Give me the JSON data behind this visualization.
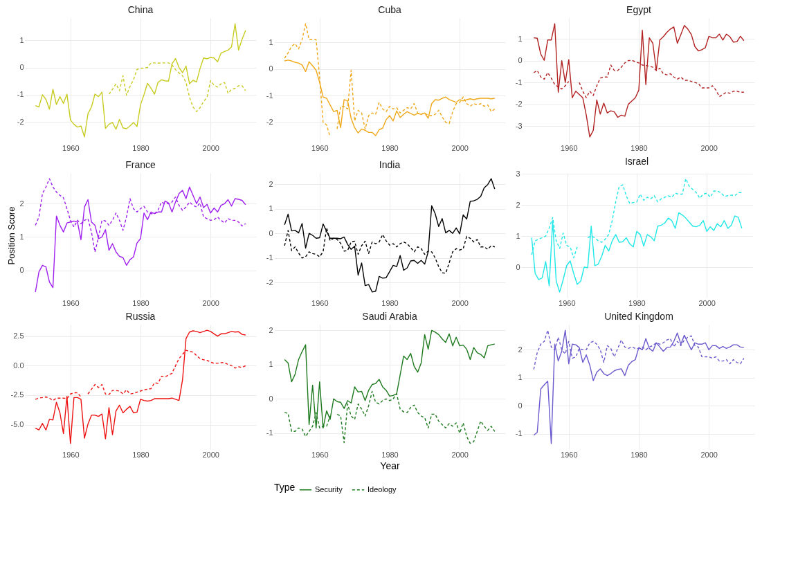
{
  "chart_data": [
    {
      "type": "line",
      "title": "China",
      "x": [
        1950,
        1951,
        1952,
        1953,
        1954,
        1955,
        1956,
        1957,
        1958,
        1959,
        1960,
        1961,
        1962,
        1963,
        1964,
        1965,
        1966,
        1967,
        1968,
        1969,
        1970,
        1971,
        1972,
        1973,
        1974,
        1975,
        1976,
        1977,
        1978,
        1979,
        1980,
        1981,
        1982,
        1983,
        1984,
        1985,
        1986,
        1987,
        1988,
        1989,
        1990,
        1991,
        1992,
        1993,
        1994,
        1995,
        1996,
        1997,
        1998,
        1999,
        2000,
        2001,
        2002,
        2003,
        2004,
        2005,
        2006,
        2007,
        2008,
        2009,
        2010
      ],
      "xlim": [
        1947,
        2013
      ],
      "xticks": [
        1960,
        1980,
        2000
      ],
      "ylim": [
        -2.76,
        1.82
      ],
      "yticks": [
        -2,
        -1,
        0,
        1
      ],
      "grid": true,
      "series": [
        {
          "color": "#c8cc20",
          "line_style": "solid",
          "values": [
            -1.4,
            -1.45,
            -1.0,
            -1.17,
            -1.53,
            -0.8,
            -1.36,
            -1.07,
            -1.32,
            -0.98,
            -1.93,
            -2.09,
            -2.19,
            -2.15,
            -2.55,
            -1.7,
            -1.45,
            -0.98,
            -1.07,
            -0.91,
            -2.24,
            -2.09,
            -2.02,
            -2.27,
            -1.91,
            -2.22,
            -2.25,
            -2.15,
            -2.02,
            -2.17,
            -1.37,
            -1.0,
            -0.58,
            -0.76,
            -0.98,
            -0.55,
            -0.45,
            -0.49,
            -0.5,
            0.14,
            0.33,
            0.0,
            -0.19,
            0.05,
            -0.6,
            -0.47,
            -0.53,
            -0.04,
            0.35,
            0.32,
            0.37,
            0.35,
            0.21,
            0.53,
            0.59,
            0.64,
            0.76,
            1.61,
            0.64,
            1.04,
            1.36
          ]
        },
        {
          "color": "#c8cc20",
          "line_style": "dashed",
          "values": [
            null,
            null,
            null,
            null,
            null,
            null,
            null,
            null,
            null,
            null,
            null,
            null,
            null,
            null,
            null,
            null,
            null,
            null,
            null,
            null,
            null,
            -0.98,
            -0.8,
            -0.6,
            -0.85,
            -0.3,
            -1.02,
            -0.7,
            -0.45,
            -0.07,
            -0.03,
            -0.02,
            0.0,
            0.17,
            0.17,
            0.16,
            0.17,
            0.17,
            0.17,
            0.1,
            -0.08,
            -0.2,
            -0.3,
            -0.55,
            -1.1,
            -1.45,
            -1.62,
            -1.48,
            -1.25,
            -1.1,
            -0.48,
            -0.65,
            -0.72,
            -0.6,
            -0.55,
            -0.95,
            -0.8,
            -0.77,
            -0.67,
            -0.67,
            -0.85
          ]
        }
      ]
    },
    {
      "type": "line",
      "title": "Cuba",
      "x": [
        1950,
        1951,
        1952,
        1953,
        1954,
        1955,
        1956,
        1957,
        1958,
        1959,
        1960,
        1961,
        1962,
        1963,
        1964,
        1965,
        1966,
        1967,
        1968,
        1969,
        1970,
        1971,
        1972,
        1973,
        1974,
        1975,
        1976,
        1977,
        1978,
        1979,
        1980,
        1981,
        1982,
        1983,
        1984,
        1985,
        1986,
        1987,
        1988,
        1989,
        1990,
        1991,
        1992,
        1993,
        1994,
        1995,
        1996,
        1997,
        1998,
        1999,
        2000,
        2001,
        2002,
        2003,
        2004,
        2005,
        2006,
        2007,
        2008,
        2009,
        2010
      ],
      "xlim": [
        1947,
        2013
      ],
      "xticks": [
        1960,
        1980,
        2000
      ],
      "ylim": [
        -2.76,
        1.91
      ],
      "yticks": [
        -2,
        -1,
        0,
        1
      ],
      "grid": true,
      "series": [
        {
          "color": "#f0a818",
          "line_style": "solid",
          "values": [
            0.3,
            0.33,
            0.3,
            0.25,
            0.22,
            0.15,
            -0.1,
            0.27,
            0.12,
            -0.05,
            -0.5,
            -1.05,
            -1.1,
            -1.35,
            -1.6,
            -1.55,
            -2.2,
            -1.15,
            -1.2,
            -1.85,
            -2.2,
            -2.4,
            -2.25,
            -2.3,
            -2.38,
            -2.38,
            -2.5,
            -2.28,
            -2.22,
            -1.9,
            -1.75,
            -1.95,
            -1.57,
            -1.82,
            -1.7,
            -1.6,
            -1.67,
            -1.73,
            -1.67,
            -1.7,
            -1.65,
            -1.85,
            -1.3,
            -1.15,
            -1.17,
            -1.1,
            -1.05,
            -1.15,
            -1.2,
            -1.25,
            -1.15,
            -1.2,
            -1.15,
            -1.12,
            -1.15,
            -1.12,
            -1.1,
            -1.1,
            -1.1,
            -1.12,
            -1.1
          ]
        },
        {
          "color": "#f0a818",
          "line_style": "dashed",
          "values": [
            0.4,
            0.6,
            0.85,
            0.95,
            0.75,
            1.1,
            1.7,
            1.1,
            1.1,
            1.1,
            -0.3,
            -2.0,
            -2.1,
            -2.55,
            null,
            -2.25,
            -1.4,
            -1.4,
            -1.5,
            -0.05,
            -1.95,
            -1.55,
            -1.65,
            -2.25,
            -1.75,
            -1.65,
            -1.7,
            -1.25,
            -1.5,
            -1.6,
            -1.4,
            -1.5,
            -1.45,
            -1.65,
            -1.55,
            -1.45,
            -1.5,
            -1.3,
            -1.65,
            -1.7,
            -1.65,
            -1.75,
            -1.75,
            -1.7,
            -1.55,
            -1.8,
            -2.0,
            -2.05,
            -1.6,
            -1.3,
            -1.25,
            -1.05,
            -1.3,
            -1.4,
            -1.3,
            -1.35,
            -1.3,
            -1.4,
            -1.35,
            -1.6,
            -1.5
          ]
        }
      ]
    },
    {
      "type": "line",
      "title": "Egypt",
      "x": [
        1950,
        1951,
        1952,
        1953,
        1954,
        1955,
        1956,
        1957,
        1958,
        1959,
        1960,
        1961,
        1962,
        1963,
        1964,
        1965,
        1966,
        1967,
        1968,
        1969,
        1970,
        1971,
        1972,
        1973,
        1974,
        1975,
        1976,
        1977,
        1978,
        1979,
        1980,
        1981,
        1982,
        1983,
        1984,
        1985,
        1986,
        1987,
        1988,
        1989,
        1990,
        1991,
        1992,
        1993,
        1994,
        1995,
        1996,
        1997,
        1998,
        1999,
        2000,
        2001,
        2002,
        2003,
        2004,
        2005,
        2006,
        2007,
        2008,
        2009,
        2010
      ],
      "xlim": [
        1947,
        2013
      ],
      "xticks": [
        1960,
        1980,
        2000
      ],
      "ylim": [
        -3.76,
        1.96
      ],
      "yticks": [
        -3,
        -2,
        -1,
        0,
        1
      ],
      "grid": true,
      "series": [
        {
          "color": "#b22222",
          "line_style": "solid",
          "values": [
            1.05,
            1.03,
            0.3,
            0.02,
            0.95,
            0.95,
            1.7,
            -1.45,
            0.0,
            -1.0,
            0.05,
            -1.7,
            -1.4,
            -1.55,
            -1.7,
            -2.5,
            -3.5,
            -3.2,
            -1.8,
            -2.45,
            -1.95,
            -2.4,
            -2.3,
            -2.35,
            -2.6,
            -2.5,
            -2.55,
            -2.0,
            -1.85,
            -1.7,
            -1.35,
            1.4,
            -1.1,
            1.05,
            0.8,
            -0.45,
            0.95,
            1.1,
            1.3,
            1.45,
            1.55,
            0.8,
            1.2,
            1.62,
            1.45,
            1.2,
            0.65,
            0.45,
            0.5,
            0.6,
            1.12,
            1.05,
            1.05,
            1.22,
            0.95,
            1.22,
            1.1,
            0.85,
            0.87,
            1.12,
            0.92
          ]
        },
        {
          "color": "#b22222",
          "line_style": "dashed",
          "values": [
            -0.55,
            -0.45,
            -0.75,
            -0.85,
            -0.55,
            -0.8,
            -1.1,
            -1.2,
            -1.3,
            -1.15,
            -0.95,
            null,
            null,
            -1.0,
            -1.4,
            -1.7,
            -1.4,
            -1.6,
            -1.15,
            -0.8,
            -0.75,
            -0.75,
            -0.2,
            -0.45,
            -0.45,
            -0.3,
            -0.1,
            0.0,
            0.02,
            -0.05,
            -0.1,
            -0.2,
            -0.22,
            -0.25,
            -0.3,
            -0.45,
            -0.35,
            -0.6,
            -0.65,
            -0.6,
            -0.75,
            -0.85,
            -0.75,
            -0.9,
            -0.9,
            -0.95,
            -1.0,
            -1.05,
            -1.25,
            -1.25,
            -1.25,
            -1.15,
            -1.35,
            -1.65,
            -1.55,
            -1.45,
            -1.5,
            -1.4,
            -1.4,
            -1.45,
            -1.45
          ]
        }
      ]
    },
    {
      "type": "line",
      "title": "France",
      "ylabel": "Position Score",
      "x": [
        1950,
        1951,
        1952,
        1953,
        1954,
        1955,
        1956,
        1957,
        1958,
        1959,
        1960,
        1961,
        1962,
        1963,
        1964,
        1965,
        1966,
        1967,
        1968,
        1969,
        1970,
        1971,
        1972,
        1973,
        1974,
        1975,
        1976,
        1977,
        1978,
        1979,
        1980,
        1981,
        1982,
        1983,
        1984,
        1985,
        1986,
        1987,
        1988,
        1989,
        1990,
        1991,
        1992,
        1993,
        1994,
        1995,
        1996,
        1997,
        1998,
        1999,
        2000,
        2001,
        2002,
        2003,
        2004,
        2005,
        2006,
        2007,
        2008,
        2009,
        2010
      ],
      "xlim": [
        1947,
        2013
      ],
      "xticks": [
        1960,
        1980,
        2000
      ],
      "ylim": [
        -0.82,
        2.92
      ],
      "yticks": [
        0,
        1,
        2
      ],
      "grid": true,
      "series": [
        {
          "color": "#a020f0",
          "line_style": "solid",
          "values": [
            -0.65,
            -0.05,
            0.15,
            0.1,
            -0.35,
            -0.52,
            1.63,
            1.35,
            1.15,
            1.42,
            1.45,
            1.48,
            1.45,
            0.92,
            1.9,
            2.12,
            1.45,
            1.35,
            0.95,
            1.0,
            1.22,
            0.6,
            0.8,
            0.55,
            0.42,
            0.38,
            0.15,
            0.32,
            0.4,
            0.82,
            0.95,
            1.72,
            1.52,
            1.75,
            1.7,
            1.75,
            1.75,
            2.08,
            2.02,
            1.75,
            2.05,
            2.3,
            2.4,
            2.15,
            2.5,
            2.25,
            2.0,
            2.2,
            1.88,
            1.98,
            1.72,
            1.87,
            1.75,
            1.95,
            2.0,
            2.12,
            1.93,
            2.15,
            2.13,
            2.1,
            1.97
          ]
        },
        {
          "color": "#a020f0",
          "line_style": "dashed",
          "values": [
            1.35,
            1.6,
            2.3,
            2.5,
            2.75,
            2.5,
            2.35,
            2.25,
            2.18,
            1.85,
            1.5,
            1.3,
            1.5,
            1.4,
            1.5,
            1.55,
            1.15,
            0.55,
            1.0,
            1.5,
            1.48,
            1.35,
            1.5,
            1.72,
            1.5,
            1.2,
            1.6,
            2.15,
            1.85,
            1.75,
            1.85,
            1.92,
            1.75,
            1.7,
            1.7,
            1.8,
            2.05,
            2.0,
            2.0,
            2.05,
            2.2,
            1.95,
            1.8,
            1.9,
            2.05,
            1.95,
            1.9,
            2.02,
            1.6,
            1.55,
            1.5,
            1.52,
            1.6,
            1.5,
            1.42,
            1.55,
            1.5,
            1.5,
            1.45,
            1.33,
            1.4
          ]
        }
      ]
    },
    {
      "type": "line",
      "title": "India",
      "x": [
        1950,
        1951,
        1952,
        1953,
        1954,
        1955,
        1956,
        1957,
        1958,
        1959,
        1960,
        1961,
        1962,
        1963,
        1964,
        1965,
        1966,
        1967,
        1968,
        1969,
        1970,
        1971,
        1972,
        1973,
        1974,
        1975,
        1976,
        1977,
        1978,
        1979,
        1980,
        1981,
        1982,
        1983,
        1984,
        1985,
        1986,
        1987,
        1988,
        1989,
        1990,
        1991,
        1992,
        1993,
        1994,
        1995,
        1996,
        1997,
        1998,
        1999,
        2000,
        2001,
        2002,
        2003,
        2004,
        2005,
        2006,
        2007,
        2008,
        2009,
        2010
      ],
      "xlim": [
        1947,
        2013
      ],
      "xticks": [
        1960,
        1980,
        2000
      ],
      "ylim": [
        -2.61,
        2.45
      ],
      "yticks": [
        -2,
        -1,
        0,
        1,
        2
      ],
      "grid": true,
      "series": [
        {
          "color": "#000000",
          "line_style": "solid",
          "values": [
            0.35,
            0.78,
            0.1,
            0.12,
            0.02,
            0.4,
            -0.6,
            0.0,
            -0.08,
            -0.2,
            -0.18,
            0.38,
            0.08,
            -0.2,
            -0.2,
            -0.2,
            -0.22,
            -0.15,
            -0.45,
            -0.65,
            -0.52,
            -1.7,
            -1.2,
            -2.12,
            -2.08,
            -2.38,
            -2.35,
            -1.75,
            -1.82,
            -1.8,
            -1.55,
            -1.3,
            -1.35,
            -0.9,
            -1.5,
            -1.4,
            -1.12,
            -1.1,
            -1.22,
            -1.1,
            -1.25,
            -0.75,
            1.12,
            0.8,
            0.28,
            0.6,
            0.02,
            0.12,
            0.0,
            0.22,
            -0.02,
            0.75,
            0.58,
            1.3,
            1.32,
            1.38,
            1.5,
            1.85,
            1.98,
            2.22,
            1.8
          ]
        },
        {
          "color": "#000000",
          "line_style": "dashed",
          "values": [
            -0.5,
            0.12,
            -0.7,
            -0.55,
            -0.8,
            -1.0,
            -0.95,
            -0.75,
            -0.82,
            -0.85,
            -0.95,
            -0.75,
            0.22,
            -0.3,
            -0.2,
            -0.25,
            -0.4,
            -0.72,
            -0.7,
            -0.35,
            -0.32,
            -0.85,
            -0.5,
            -0.32,
            -0.82,
            -0.35,
            -0.42,
            -0.35,
            -0.05,
            -0.3,
            -0.48,
            -0.42,
            -0.55,
            -0.42,
            -0.35,
            -0.42,
            -0.58,
            -0.75,
            -0.55,
            -0.62,
            -0.85,
            -0.72,
            -0.75,
            -1.0,
            -1.35,
            -1.6,
            -1.62,
            -1.2,
            -0.75,
            -0.62,
            -0.68,
            -0.62,
            -0.12,
            -0.2,
            -0.35,
            -0.25,
            -0.55,
            -0.55,
            -0.65,
            -0.5,
            -0.55
          ]
        }
      ]
    },
    {
      "type": "line",
      "title": "Israel",
      "x": [
        1950,
        1951,
        1952,
        1953,
        1954,
        1955,
        1956,
        1957,
        1958,
        1959,
        1960,
        1961,
        1962,
        1963,
        1964,
        1965,
        1966,
        1967,
        1968,
        1969,
        1970,
        1971,
        1972,
        1973,
        1974,
        1975,
        1976,
        1977,
        1978,
        1979,
        1980,
        1981,
        1982,
        1983,
        1984,
        1985,
        1986,
        1987,
        1988,
        1989,
        1990,
        1991,
        1992,
        1993,
        1994,
        1995,
        1996,
        1997,
        1998,
        1999,
        2000,
        2001,
        2002,
        2003,
        2004,
        2005,
        2006,
        2007,
        2008,
        2009,
        2010
      ],
      "xlim": [
        1947,
        2013
      ],
      "xticks": [
        1960,
        1980,
        2000
      ],
      "ylim": [
        -0.98,
        3.03
      ],
      "yticks": [
        0,
        1,
        2,
        3
      ],
      "grid": true,
      "series": [
        {
          "color": "#20e8e8",
          "line_style": "solid",
          "values": [
            0.95,
            -0.2,
            -0.4,
            -0.35,
            0.18,
            -0.6,
            1.5,
            -0.45,
            -0.8,
            -0.4,
            0.05,
            0.2,
            -0.2,
            -0.55,
            -0.45,
            0.0,
            -0.02,
            1.32,
            0.05,
            0.1,
            0.35,
            0.7,
            0.52,
            0.85,
            1.05,
            0.8,
            0.82,
            0.95,
            0.75,
            0.65,
            1.15,
            1.05,
            0.68,
            1.05,
            0.98,
            0.85,
            1.32,
            1.35,
            1.42,
            1.58,
            1.5,
            1.25,
            1.75,
            1.68,
            1.58,
            1.45,
            1.32,
            1.3,
            1.35,
            1.5,
            1.15,
            1.3,
            1.18,
            1.4,
            1.3,
            1.5,
            1.25,
            1.35,
            1.65,
            1.6,
            1.25
          ]
        },
        {
          "color": "#20e8e8",
          "line_style": "dashed",
          "values": [
            0.4,
            0.85,
            0.9,
            0.95,
            1.0,
            1.25,
            1.6,
            0.85,
            0.6,
            1.1,
            0.7,
            0.65,
            0.3,
            0.65,
            null,
            null,
            0.95,
            1.0,
            0.95,
            0.85,
            0.8,
            0.9,
            1.05,
            1.5,
            2.1,
            2.6,
            2.65,
            2.3,
            2.05,
            2.08,
            2.1,
            2.35,
            2.15,
            2.25,
            2.2,
            2.3,
            2.1,
            2.2,
            2.25,
            2.3,
            2.25,
            2.38,
            2.35,
            2.35,
            2.85,
            2.6,
            2.5,
            2.4,
            2.22,
            2.35,
            2.38,
            2.25,
            2.45,
            2.45,
            2.4,
            2.28,
            2.3,
            2.32,
            2.3,
            2.4,
            2.4
          ]
        }
      ]
    },
    {
      "type": "line",
      "title": "Russia",
      "x": [
        1950,
        1951,
        1952,
        1953,
        1954,
        1955,
        1956,
        1957,
        1958,
        1959,
        1960,
        1961,
        1962,
        1963,
        1964,
        1965,
        1966,
        1967,
        1968,
        1969,
        1970,
        1971,
        1972,
        1973,
        1974,
        1975,
        1976,
        1977,
        1978,
        1979,
        1980,
        1981,
        1982,
        1983,
        1984,
        1985,
        1986,
        1987,
        1988,
        1989,
        1990,
        1991,
        1992,
        1993,
        1994,
        1995,
        1996,
        1997,
        1998,
        1999,
        2000,
        2001,
        2002,
        2003,
        2004,
        2005,
        2006,
        2007,
        2008,
        2009,
        2010
      ],
      "xlim": [
        1947,
        2013
      ],
      "xticks": [
        1960,
        1980,
        2000
      ],
      "ylim": [
        -7.08,
        3.48
      ],
      "yticks": [
        {
          "value": -5,
          "label": "-5.0"
        },
        {
          "value": -2.5,
          "label": "-2.5"
        },
        {
          "value": 0,
          "label": "0.0"
        },
        {
          "value": 2.5,
          "label": "2.5"
        }
      ],
      "grid": true,
      "series": [
        {
          "color": "#ee1111",
          "line_style": "solid",
          "values": [
            -5.3,
            -5.45,
            -4.9,
            -5.45,
            -4.55,
            -4.6,
            -3.1,
            -4.0,
            -5.75,
            -2.6,
            -6.6,
            -2.7,
            -2.7,
            -2.85,
            -6.15,
            -4.95,
            -4.2,
            -4.2,
            -4.3,
            -4.1,
            -6.2,
            -3.55,
            -5.85,
            -3.85,
            -3.35,
            -4.0,
            -3.7,
            -3.45,
            -4.0,
            -3.95,
            -2.85,
            -2.95,
            -3.0,
            -2.95,
            -2.8,
            -2.8,
            -2.8,
            -2.8,
            -2.8,
            -2.75,
            -2.85,
            -2.95,
            -1.2,
            2.3,
            2.85,
            2.95,
            2.9,
            2.8,
            2.9,
            3.0,
            2.9,
            2.7,
            2.5,
            2.7,
            2.7,
            2.8,
            2.9,
            2.85,
            2.88,
            2.65,
            2.6
          ]
        },
        {
          "color": "#ee1111",
          "line_style": "dashed",
          "values": [
            -2.85,
            -2.75,
            -2.7,
            -2.65,
            -2.75,
            -2.95,
            -2.75,
            -2.75,
            -2.75,
            -2.8,
            -2.4,
            -2.3,
            -2.3,
            -2.65,
            null,
            -2.4,
            -2.0,
            -1.6,
            -1.85,
            -1.6,
            -2.4,
            -2.45,
            -2.1,
            -2.1,
            -2.15,
            -2.4,
            -2.05,
            -2.4,
            -2.35,
            -2.25,
            -2.15,
            -2.05,
            -2.0,
            -1.95,
            -1.45,
            -1.5,
            -0.9,
            -0.95,
            -0.8,
            -0.65,
            0.0,
            0.6,
            0.95,
            1.3,
            1.2,
            1.15,
            0.85,
            0.6,
            0.5,
            0.45,
            0.3,
            0.2,
            0.2,
            0.25,
            0.25,
            0.1,
            0.0,
            -0.2,
            -0.1,
            -0.15,
            0.0
          ]
        }
      ]
    },
    {
      "type": "line",
      "title": "Saudi Arabia",
      "xlabel": "Year",
      "legend": "bottom",
      "legend_title": "Type",
      "x": [
        1950,
        1951,
        1952,
        1953,
        1954,
        1955,
        1956,
        1957,
        1958,
        1959,
        1960,
        1961,
        1962,
        1963,
        1964,
        1965,
        1966,
        1967,
        1968,
        1969,
        1970,
        1971,
        1972,
        1973,
        1974,
        1975,
        1976,
        1977,
        1978,
        1979,
        1980,
        1981,
        1982,
        1983,
        1984,
        1985,
        1986,
        1987,
        1988,
        1989,
        1990,
        1991,
        1992,
        1993,
        1994,
        1995,
        1996,
        1997,
        1998,
        1999,
        2000,
        2001,
        2002,
        2003,
        2004,
        2005,
        2006,
        2007,
        2008,
        2009,
        2010
      ],
      "xlim": [
        1947,
        2013
      ],
      "xticks": [
        1960,
        1980,
        2000
      ],
      "ylim": [
        -1.47,
        2.17
      ],
      "yticks": [
        -1,
        0,
        1,
        2
      ],
      "grid": true,
      "series": [
        {
          "name": "Security",
          "color": "#1e7a1e",
          "line_style": "solid",
          "values": [
            1.15,
            1.05,
            0.5,
            0.72,
            1.15,
            1.38,
            1.58,
            -0.75,
            0.4,
            -0.85,
            0.5,
            -0.85,
            -0.35,
            -0.6,
            0.0,
            -0.08,
            -0.1,
            -0.28,
            -0.05,
            -0.12,
            0.35,
            0.2,
            0.22,
            -0.05,
            0.25,
            0.42,
            0.45,
            0.57,
            0.35,
            0.25,
            0.08,
            0.1,
            0.15,
            0.7,
            1.25,
            1.15,
            1.33,
            0.95,
            0.78,
            1.05,
            1.88,
            1.45,
            2.0,
            1.95,
            1.88,
            1.75,
            1.65,
            1.9,
            1.55,
            1.8,
            1.55,
            1.57,
            1.45,
            1.15,
            1.5,
            1.35,
            1.3,
            1.2,
            1.55,
            1.58,
            1.6
          ]
        },
        {
          "name": "Ideology",
          "color": "#1e7a1e",
          "line_style": "dashed",
          "values": [
            -0.4,
            -0.42,
            -0.95,
            -0.95,
            -0.85,
            -0.88,
            -1.1,
            -0.95,
            -0.8,
            -0.4,
            -0.85,
            -0.8,
            -0.8,
            -0.5,
            null,
            -0.45,
            -0.5,
            -1.28,
            -0.15,
            -0.5,
            -0.6,
            -0.15,
            -0.3,
            -0.5,
            -0.2,
            0.22,
            -0.1,
            -0.15,
            -0.05,
            0.0,
            -0.05,
            0.0,
            0.15,
            -0.3,
            -0.38,
            -0.4,
            -0.25,
            -0.18,
            -0.4,
            -0.5,
            -0.55,
            -0.85,
            -0.45,
            -0.45,
            -0.65,
            -0.75,
            -0.85,
            -0.72,
            -0.8,
            -0.7,
            -1.0,
            -0.7,
            -1.1,
            -1.3,
            -1.25,
            -0.95,
            -0.65,
            -0.8,
            -0.92,
            -0.8,
            -0.95
          ]
        }
      ]
    },
    {
      "type": "line",
      "title": "United Kingdom",
      "x": [
        1950,
        1951,
        1952,
        1953,
        1954,
        1955,
        1956,
        1957,
        1958,
        1959,
        1960,
        1961,
        1962,
        1963,
        1964,
        1965,
        1966,
        1967,
        1968,
        1969,
        1970,
        1971,
        1972,
        1973,
        1974,
        1975,
        1976,
        1977,
        1978,
        1979,
        1980,
        1981,
        1982,
        1983,
        1984,
        1985,
        1986,
        1987,
        1988,
        1989,
        1990,
        1991,
        1992,
        1993,
        1994,
        1995,
        1996,
        1997,
        1998,
        1999,
        2000,
        2001,
        2002,
        2003,
        2004,
        2005,
        2006,
        2007,
        2008,
        2009,
        2010
      ],
      "xlim": [
        1947,
        2013
      ],
      "xticks": [
        1960,
        1980,
        2000
      ],
      "ylim": [
        -1.55,
        2.9
      ],
      "yticks": [
        -1,
        0,
        1,
        2
      ],
      "grid": true,
      "series": [
        {
          "color": "#6a5acd",
          "line_style": "solid",
          "values": [
            -1.05,
            -0.95,
            0.6,
            0.75,
            0.88,
            -1.35,
            2.2,
            1.6,
            1.95,
            2.7,
            1.5,
            2.2,
            2.18,
            2.08,
            1.55,
            1.82,
            1.45,
            0.9,
            1.2,
            1.32,
            1.15,
            1.08,
            1.15,
            1.25,
            1.3,
            1.32,
            1.08,
            1.45,
            1.58,
            1.65,
            2.08,
            2.0,
            2.4,
            2.05,
            1.95,
            2.25,
            2.1,
            1.95,
            2.08,
            2.1,
            2.3,
            2.6,
            2.2,
            2.52,
            2.25,
            2.0,
            2.25,
            2.2,
            2.2,
            2.25,
            2.0,
            2.15,
            2.15,
            2.05,
            2.12,
            2.05,
            2.1,
            2.18,
            2.18,
            2.1,
            2.08
          ]
        },
        {
          "color": "#6a5acd",
          "line_style": "dashed",
          "values": [
            1.3,
            1.9,
            2.2,
            2.3,
            2.7,
            2.1,
            2.0,
            2.45,
            2.0,
            1.85,
            2.3,
            1.7,
            1.75,
            2.05,
            2.0,
            2.0,
            2.25,
            2.3,
            2.2,
            2.0,
            1.55,
            2.15,
            2.05,
            1.75,
            2.05,
            2.35,
            2.1,
            2.05,
            2.1,
            2.05,
            2.05,
            2.1,
            2.0,
            2.1,
            2.15,
            2.25,
            2.2,
            2.25,
            2.35,
            2.4,
            2.1,
            2.3,
            2.15,
            2.35,
            2.45,
            2.5,
            2.15,
            2.1,
            1.75,
            1.75,
            1.75,
            1.7,
            1.75,
            1.6,
            1.6,
            1.65,
            1.5,
            1.65,
            1.55,
            1.5,
            1.7
          ]
        }
      ]
    }
  ]
}
